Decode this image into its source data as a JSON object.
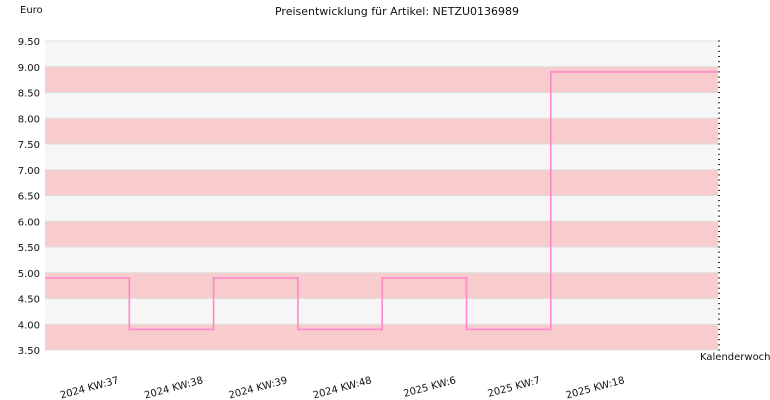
{
  "chart_data": {
    "type": "line",
    "line_shape": "step",
    "title": "Preisentwicklung für Artikel: NETZU0136989",
    "ylabel": "Euro",
    "xlabel": "Kalenderwoche",
    "ylim": [
      3.5,
      9.5
    ],
    "y_tick_step": 0.5,
    "grid": true,
    "band_colors": [
      "#f8cccc",
      "#f6f6f6"
    ],
    "categories": [
      "2024 KW:37",
      "2024 KW:38",
      "2024 KW:39",
      "2024 KW:48",
      "2025 KW:6",
      "2025 KW:7",
      "2025 KW:18"
    ],
    "series": [
      {
        "color": "#ff88cc",
        "values": [
          4.9,
          3.9,
          4.9,
          3.9,
          4.9,
          3.9,
          8.9
        ]
      }
    ]
  }
}
